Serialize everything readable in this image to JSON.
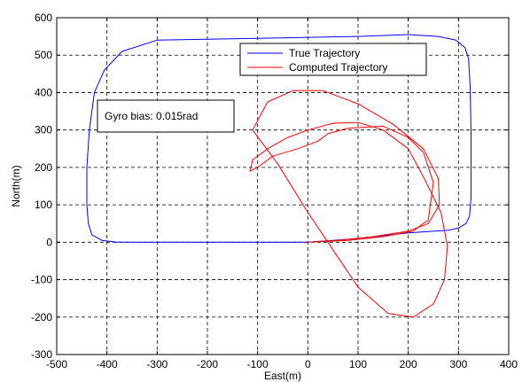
{
  "chart_data": {
    "type": "line",
    "xlabel": "East(m)",
    "ylabel": "North(m)",
    "xlim": [
      -500,
      400
    ],
    "ylim": [
      -300,
      600
    ],
    "xticks": [
      -500,
      -400,
      -300,
      -200,
      -100,
      0,
      100,
      200,
      300,
      400
    ],
    "yticks": [
      -300,
      -200,
      -100,
      0,
      100,
      200,
      300,
      400,
      500,
      600
    ],
    "grid": true,
    "legend_position": "top-right",
    "annotation": "Gyro bias: 0.015rad",
    "series": [
      {
        "name": "True Trajectory",
        "color": "#0000ff",
        "x": [
          0,
          -200,
          -300,
          -330,
          -380,
          -410,
          -430,
          -437,
          -440,
          -440,
          -435,
          -425,
          -405,
          -370,
          -300,
          -100,
          100,
          200,
          260,
          295,
          313,
          320,
          323,
          325,
          325,
          322,
          315,
          300,
          280,
          200,
          100,
          0
        ],
        "y": [
          0,
          0,
          0,
          0,
          0,
          5,
          20,
          50,
          100,
          200,
          300,
          400,
          460,
          510,
          540,
          545,
          550,
          555,
          550,
          540,
          520,
          490,
          420,
          300,
          120,
          70,
          50,
          38,
          32,
          25,
          10,
          0
        ]
      },
      {
        "name": "Computed Trajectory",
        "color": "#ff0000",
        "x": [
          0,
          60,
          130,
          200,
          240,
          262,
          260,
          230,
          170,
          100,
          30,
          -30,
          -80,
          -110,
          -60,
          0,
          40,
          100,
          160,
          210,
          250,
          272,
          278,
          265,
          232,
          200,
          150,
          100,
          50,
          0,
          -40,
          -80,
          -110,
          -115,
          -100,
          -70,
          -20,
          20,
          40,
          80,
          150,
          200,
          230,
          250,
          240,
          210,
          150,
          80,
          30,
          0
        ],
        "y": [
          0,
          5,
          15,
          30,
          50,
          100,
          170,
          250,
          315,
          370,
          405,
          405,
          375,
          300,
          210,
          80,
          0,
          -120,
          -190,
          -200,
          -165,
          -100,
          -10,
          80,
          170,
          250,
          300,
          320,
          318,
          300,
          280,
          250,
          220,
          190,
          200,
          230,
          250,
          270,
          290,
          305,
          310,
          280,
          240,
          160,
          60,
          30,
          15,
          5,
          2,
          0
        ]
      }
    ]
  }
}
